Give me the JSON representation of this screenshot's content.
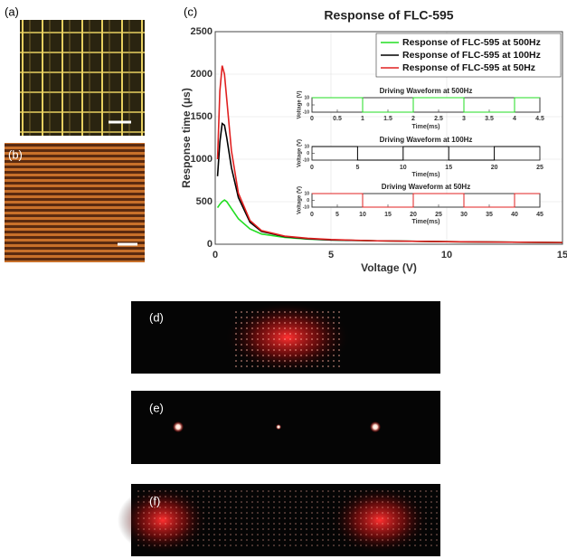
{
  "panel_labels": [
    "(a)",
    "(b)",
    "(c)",
    "(d)",
    "(e)",
    "(f)"
  ],
  "chart_data": [
    {
      "type": "line",
      "title": "Response of FLC-595",
      "xlabel": "Voltage (V)",
      "ylabel": "Response time (μs)",
      "x": [
        0.1,
        0.2,
        0.3,
        0.4,
        0.5,
        0.7,
        1,
        1.5,
        2,
        3,
        4,
        5,
        7,
        10,
        15
      ],
      "series": [
        {
          "name": "Response of FLC-595 at 500Hz",
          "color": "#22dd22",
          "values": [
            430,
            470,
            500,
            520,
            500,
            420,
            300,
            180,
            120,
            80,
            60,
            50,
            40,
            30,
            20
          ]
        },
        {
          "name": "Response of FLC-595 at 100Hz",
          "color": "#000000",
          "values": [
            800,
            1200,
            1420,
            1400,
            1250,
            900,
            550,
            260,
            150,
            90,
            65,
            50,
            40,
            30,
            20
          ]
        },
        {
          "name": "Response of FLC-595 at 50Hz",
          "color": "#e02020",
          "values": [
            1000,
            1800,
            2100,
            2000,
            1700,
            1100,
            600,
            280,
            160,
            95,
            70,
            55,
            40,
            30,
            20
          ]
        }
      ],
      "xlim": [
        0,
        15
      ],
      "ylim": [
        0,
        2500
      ],
      "xticks": [
        0,
        5,
        10,
        15
      ],
      "yticks": [
        0,
        500,
        1000,
        1500,
        2000,
        2500
      ],
      "grid": true,
      "legend": "upper right"
    },
    {
      "type": "line",
      "title": "Driving Waveform at 500Hz",
      "xlabel": "Time(ms)",
      "ylabel": "Voltage (V)",
      "x": [
        0,
        1,
        1,
        2,
        2,
        3,
        3,
        4,
        4,
        4.5
      ],
      "series": [
        {
          "color": "#22dd22",
          "values": [
            10,
            10,
            -10,
            -10,
            10,
            10,
            -10,
            -10,
            10,
            10
          ]
        }
      ],
      "xlim": [
        0,
        4.5
      ],
      "ylim": [
        -10,
        10
      ],
      "xticks": [
        0,
        0.5,
        1,
        1.5,
        2,
        2.5,
        3,
        3.5,
        4,
        4.5
      ],
      "yticks": [
        -10,
        0,
        10
      ],
      "grid": false
    },
    {
      "type": "line",
      "title": "Driving Waveform at 100Hz",
      "xlabel": "Time(ms)",
      "ylabel": "Voltage (V)",
      "x": [
        0,
        5,
        5,
        10,
        10,
        15,
        15,
        20,
        20,
        25
      ],
      "series": [
        {
          "color": "#000000",
          "values": [
            10,
            10,
            -10,
            -10,
            10,
            10,
            -10,
            -10,
            10,
            10
          ]
        }
      ],
      "xlim": [
        0,
        25
      ],
      "ylim": [
        -10,
        10
      ],
      "xticks": [
        0,
        5,
        10,
        15,
        20,
        25
      ],
      "yticks": [
        -10,
        0,
        10
      ],
      "grid": false
    },
    {
      "type": "line",
      "title": "Driving Waveform at 50Hz",
      "xlabel": "Time(ms)",
      "ylabel": "Voltage (V)",
      "x": [
        0,
        10,
        10,
        20,
        20,
        30,
        30,
        40,
        40,
        45
      ],
      "series": [
        {
          "color": "#e02020",
          "values": [
            10,
            10,
            -10,
            -10,
            10,
            10,
            -10,
            -10,
            10,
            10
          ]
        }
      ],
      "xlim": [
        0,
        45
      ],
      "ylim": [
        -10,
        10
      ],
      "xticks": [
        0,
        5,
        10,
        15,
        20,
        25,
        30,
        35,
        40,
        45
      ],
      "yticks": [
        -10,
        0,
        10
      ],
      "grid": false
    }
  ]
}
